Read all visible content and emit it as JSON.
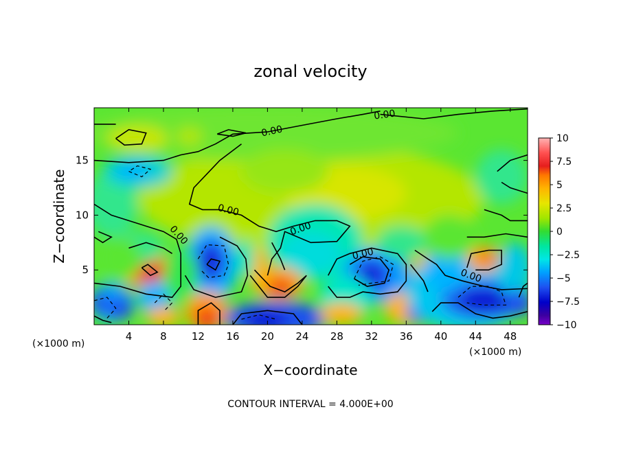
{
  "chart_data": {
    "type": "heatmap",
    "title": "zonal velocity",
    "xlabel": "X−coordinate",
    "ylabel": "Z−coordinate",
    "x_scale_note": "(×1000 m)",
    "z_scale_note": "(×1000 m)",
    "xlim": [
      0,
      50
    ],
    "ylim": [
      0,
      19.8
    ],
    "x_ticks": [
      4,
      8,
      12,
      16,
      20,
      24,
      28,
      32,
      36,
      40,
      44,
      48
    ],
    "y_ticks": [
      5,
      10,
      15
    ],
    "colorbar": {
      "ticks": [
        "10",
        "7.5",
        "5",
        "2.5",
        "0",
        "−2.5",
        "−5",
        "−7.5",
        "−10"
      ],
      "values": [
        10,
        7.5,
        5,
        2.5,
        0,
        -2.5,
        -5,
        -7.5,
        -10
      ],
      "range": [
        -10,
        10
      ]
    },
    "contour_interval_text": "CONTOUR INTERVAL = 4.000E+00",
    "contour_labels": [
      "0.00",
      "0.00",
      "0.00",
      "0.00",
      "0.00",
      "0.00",
      "0.00"
    ],
    "features": [
      {
        "kind": "jet",
        "x": 28,
        "z": 12,
        "value": 3
      },
      {
        "kind": "max",
        "x": 6,
        "z": 5,
        "value": 7.5
      },
      {
        "kind": "max",
        "x": 13,
        "z": 1,
        "value": 7.5
      },
      {
        "kind": "max",
        "x": 21,
        "z": 3.5,
        "value": 6
      },
      {
        "kind": "max",
        "x": 45,
        "z": 6,
        "value": 6
      },
      {
        "kind": "max",
        "x": 5,
        "z": 17,
        "value": 4.5
      },
      {
        "kind": "min",
        "x": 13.5,
        "z": 5.8,
        "value": -8
      },
      {
        "kind": "min",
        "x": 32,
        "z": 4.5,
        "value": -8
      },
      {
        "kind": "min",
        "x": 45,
        "z": 2,
        "value": -7
      },
      {
        "kind": "min",
        "x": 19.5,
        "z": 0.5,
        "value": -7
      },
      {
        "kind": "min",
        "x": 4,
        "z": 14,
        "value": -3
      }
    ]
  }
}
